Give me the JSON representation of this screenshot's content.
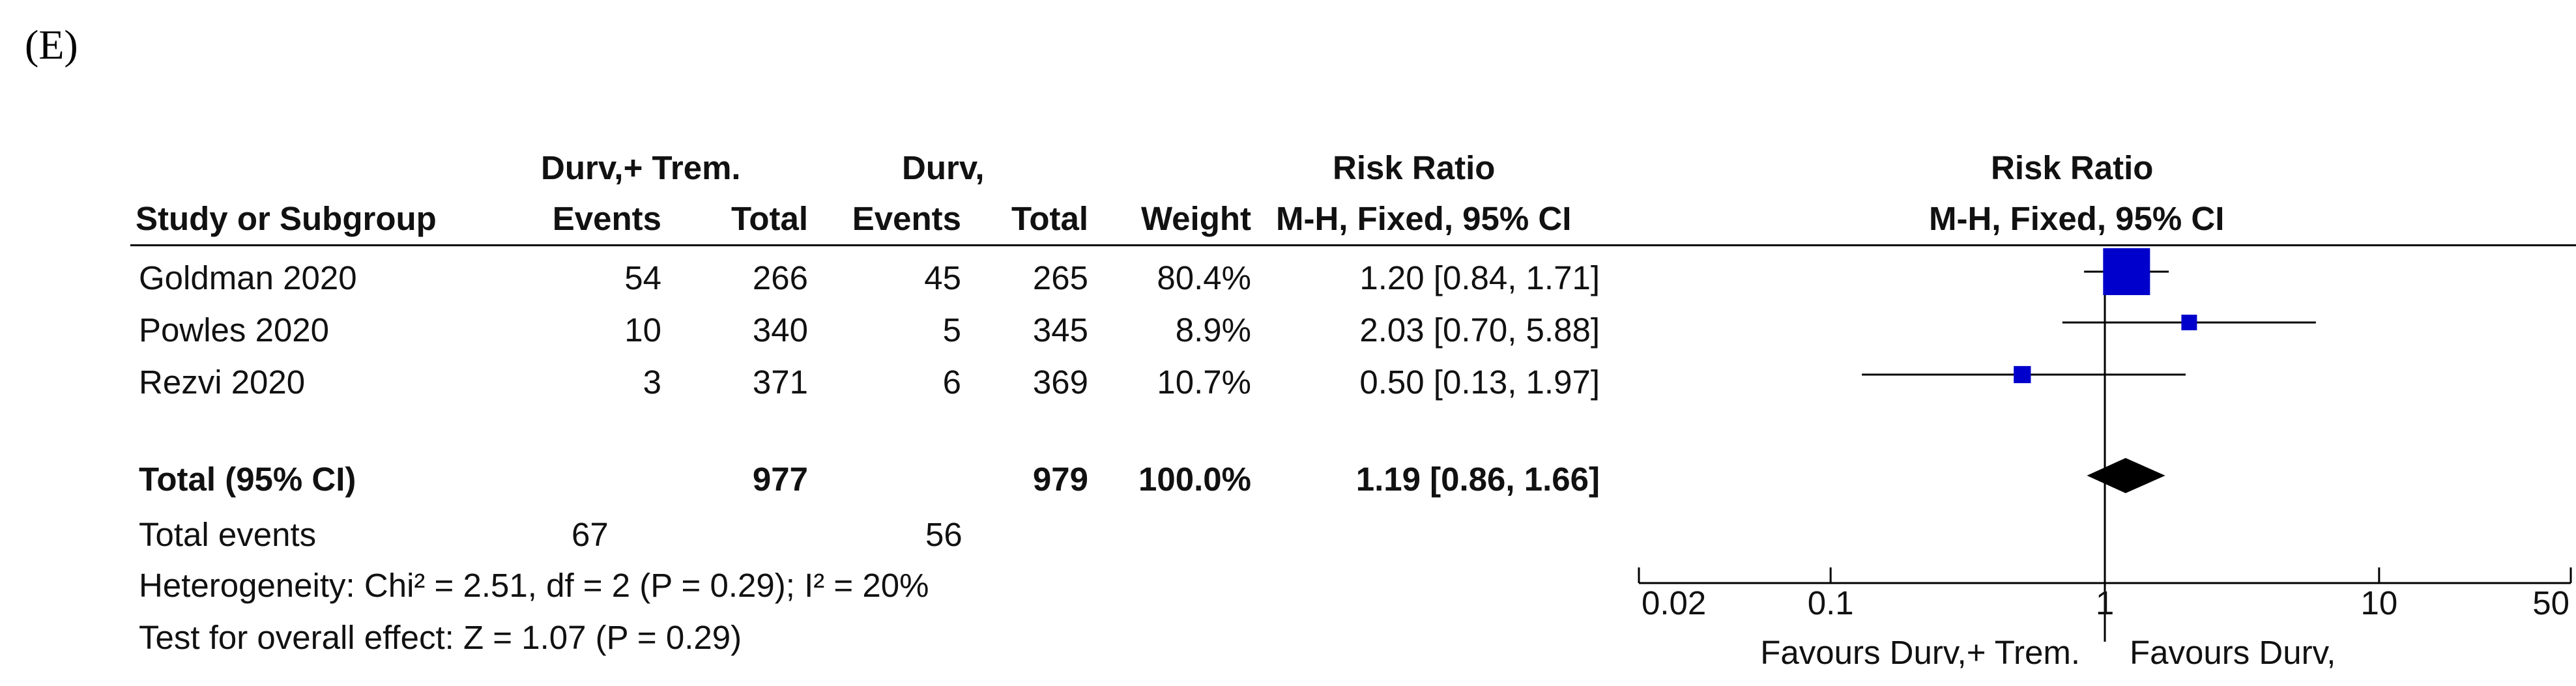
{
  "panel_label": "(E)",
  "groups": {
    "experimental": "Durv,+ Trem.",
    "control": "Durv,",
    "risk_ratio_left": "Risk Ratio",
    "risk_ratio_right": "Risk Ratio"
  },
  "columns": {
    "study": "Study or Subgroup",
    "exp_events": "Events",
    "exp_total": "Total",
    "ctl_events": "Events",
    "ctl_total": "Total",
    "weight": "Weight",
    "rr_method": "M-H, Fixed, 95% CI",
    "plot_method": "M-H, Fixed, 95% CI"
  },
  "studies": [
    {
      "name": "Goldman 2020",
      "exp_events": "54",
      "exp_total": "266",
      "ctl_events": "45",
      "ctl_total": "265",
      "weight": "80.4%",
      "ci_text": "1.20 [0.84, 1.71]"
    },
    {
      "name": "Powles 2020",
      "exp_events": "10",
      "exp_total": "340",
      "ctl_events": "5",
      "ctl_total": "345",
      "weight": "8.9%",
      "ci_text": "2.03 [0.70, 5.88]"
    },
    {
      "name": "Rezvi 2020",
      "exp_events": "3",
      "exp_total": "371",
      "ctl_events": "6",
      "ctl_total": "369",
      "weight": "10.7%",
      "ci_text": "0.50 [0.13, 1.97]"
    }
  ],
  "total": {
    "label": "Total (95% CI)",
    "exp_total": "977",
    "ctl_total": "979",
    "weight": "100.0%",
    "ci_text": "1.19 [0.86, 1.66]"
  },
  "total_events": {
    "label": "Total events",
    "exp": "67",
    "ctl": "56"
  },
  "heterogeneity": "Heterogeneity: Chi² = 2.51, df = 2 (P = 0.29); I² = 20%",
  "overall_effect": "Test for overall effect: Z = 1.07 (P = 0.29)",
  "chart_data": {
    "type": "forest",
    "scale": "log",
    "xlim": [
      0.02,
      50
    ],
    "reference_line": 1,
    "tick_values": [
      0.02,
      0.1,
      1,
      10,
      50
    ],
    "tick_labels": [
      "0.02",
      "0.1",
      "1",
      "10",
      "50"
    ],
    "favours_left": "Favours Durv,+ Trem.",
    "favours_right": "Favours Durv,",
    "studies": [
      {
        "name": "Goldman 2020",
        "rr": 1.2,
        "lower": 0.84,
        "upper": 1.71,
        "weight": 80.4
      },
      {
        "name": "Powles 2020",
        "rr": 2.03,
        "lower": 0.7,
        "upper": 5.88,
        "weight": 8.9
      },
      {
        "name": "Rezvi 2020",
        "rr": 0.5,
        "lower": 0.13,
        "upper": 1.97,
        "weight": 10.7
      }
    ],
    "pooled": {
      "rr": 1.19,
      "lower": 0.86,
      "upper": 1.66
    },
    "marker_color": "#0000cc",
    "diamond_color": "#000000"
  }
}
